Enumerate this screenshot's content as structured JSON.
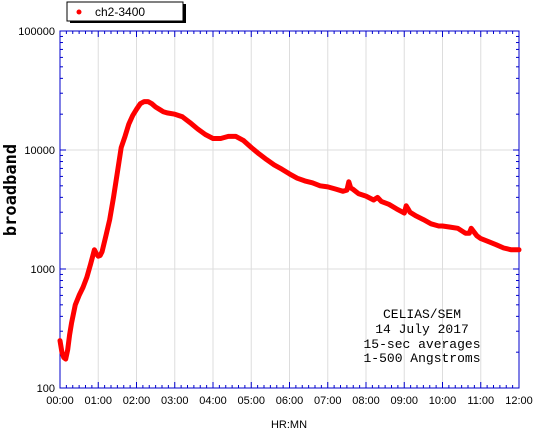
{
  "chart_data": {
    "type": "line",
    "title": "",
    "xlabel": "HR:MN",
    "ylabel": "broadband",
    "x_ticks": [
      "00:00",
      "01:00",
      "02:00",
      "03:00",
      "04:00",
      "05:00",
      "06:00",
      "07:00",
      "08:00",
      "09:00",
      "10:00",
      "11:00",
      "12:00"
    ],
    "xlim": [
      0,
      12
    ],
    "ylim": [
      100,
      100000
    ],
    "y_scale": "log",
    "y_ticks": [
      "100",
      "1000",
      "10000",
      "100000"
    ],
    "y_tick_values": [
      100,
      1000,
      10000,
      100000
    ],
    "grid": true,
    "legend": {
      "placement": "top-left",
      "entries": [
        "ch2-3400"
      ]
    },
    "annotations": [
      "CELIAS/SEM",
      "14 July 2017",
      "15-sec averages",
      "1-500 Angstroms"
    ],
    "colors": {
      "series": "#ff0000",
      "frame": "#0000cc",
      "grid": "#dddddd"
    },
    "series": [
      {
        "name": "ch2-3400",
        "x": [
          0.0,
          0.05,
          0.1,
          0.15,
          0.2,
          0.25,
          0.3,
          0.4,
          0.5,
          0.6,
          0.7,
          0.8,
          0.9,
          0.95,
          1.0,
          1.05,
          1.1,
          1.2,
          1.3,
          1.4,
          1.5,
          1.6,
          1.7,
          1.8,
          1.9,
          2.0,
          2.1,
          2.2,
          2.3,
          2.4,
          2.5,
          2.6,
          2.7,
          2.8,
          3.0,
          3.2,
          3.4,
          3.6,
          3.8,
          4.0,
          4.2,
          4.4,
          4.6,
          4.8,
          5.0,
          5.2,
          5.4,
          5.6,
          5.8,
          6.0,
          6.2,
          6.4,
          6.6,
          6.8,
          7.0,
          7.2,
          7.4,
          7.5,
          7.55,
          7.6,
          7.65,
          7.8,
          8.0,
          8.2,
          8.3,
          8.4,
          8.6,
          8.8,
          9.0,
          9.05,
          9.1,
          9.15,
          9.3,
          9.5,
          9.7,
          9.9,
          10.0,
          10.2,
          10.4,
          10.6,
          10.7,
          10.75,
          10.9,
          11.0,
          11.2,
          11.4,
          11.6,
          11.8,
          12.0
        ],
        "y": [
          250,
          200,
          180,
          175,
          210,
          280,
          350,
          500,
          600,
          700,
          850,
          1100,
          1450,
          1350,
          1280,
          1300,
          1400,
          1900,
          2600,
          4000,
          6500,
          10500,
          13000,
          16500,
          19500,
          22000,
          24500,
          25500,
          25500,
          24500,
          23000,
          22000,
          21000,
          20500,
          20000,
          19000,
          17000,
          15000,
          13500,
          12500,
          12500,
          13000,
          13000,
          12000,
          10500,
          9300,
          8300,
          7500,
          6900,
          6300,
          5800,
          5500,
          5300,
          5000,
          4900,
          4700,
          4500,
          4600,
          5400,
          4800,
          4700,
          4300,
          4100,
          3800,
          4000,
          3700,
          3500,
          3200,
          2950,
          3400,
          3200,
          3000,
          2800,
          2600,
          2400,
          2300,
          2300,
          2250,
          2200,
          2000,
          2000,
          2200,
          1900,
          1800,
          1700,
          1600,
          1500,
          1450,
          1450
        ]
      }
    ]
  }
}
